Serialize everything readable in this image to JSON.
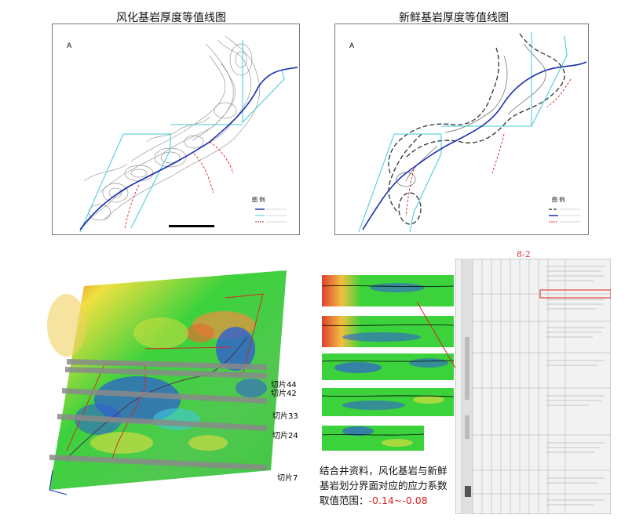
{
  "map_left": {
    "title": "风化基岩厚度等值线图",
    "legend_title": "图 例"
  },
  "map_right": {
    "title": "新鲜基岩厚度等值线图",
    "legend_title": "图 例"
  },
  "north_symbol": "A",
  "model_3d": {
    "slices": [
      "切片44",
      "切片42",
      "切片33",
      "切片24",
      "切片7"
    ]
  },
  "caption": {
    "text": "结合井资料，风化基岩与新鲜基岩划分界面对应的应力系数取值范围：",
    "range": "-0.14~-0.08"
  },
  "well_log": {
    "title": "8-2"
  },
  "colors": {
    "red": "#e02020",
    "blue": "#1a2fb0",
    "cyan": "#40c8d8",
    "green": "#3cd23c",
    "yellow": "#f0e040"
  }
}
